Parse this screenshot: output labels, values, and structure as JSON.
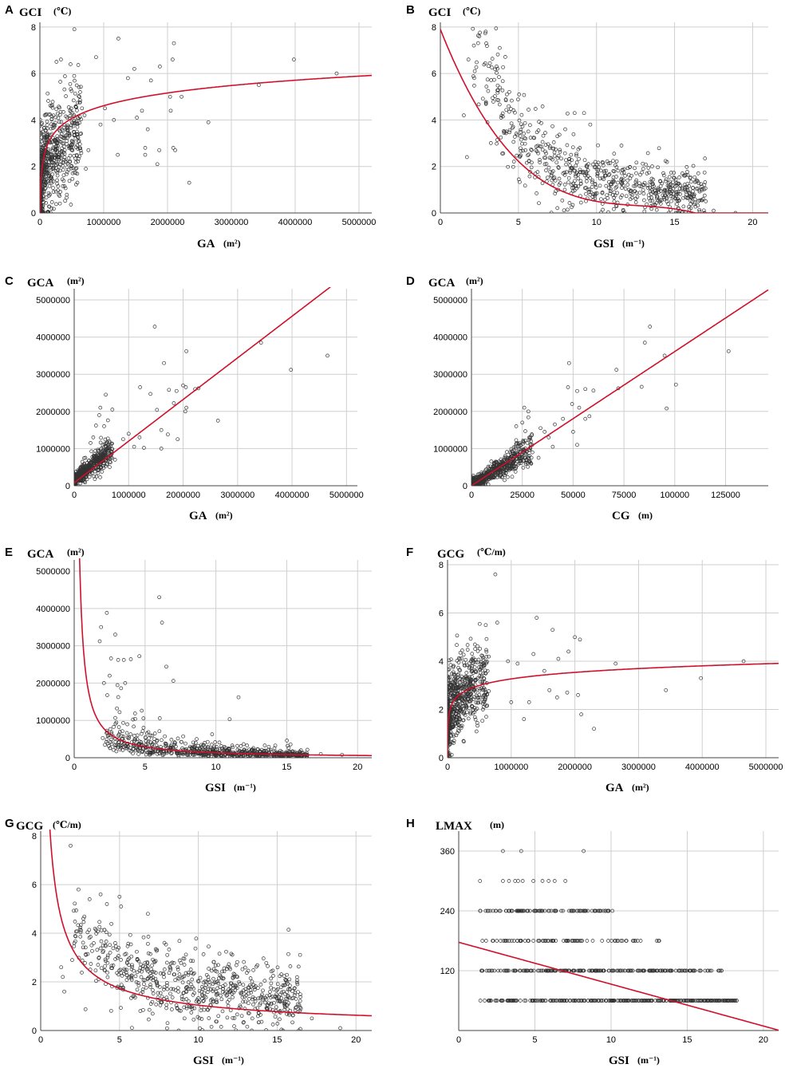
{
  "colors": {
    "fit_line": "#d0102a",
    "points": "#333333",
    "grid": "#cfcfcf"
  },
  "chart_data": [
    {
      "panel": "A",
      "type": "scatter",
      "ylabel": "GCI",
      "yunit": "(℃)",
      "xlabel": "GA",
      "xunit": "(m²)",
      "xlim": [
        0,
        5200000
      ],
      "ylim": [
        0,
        8.2
      ],
      "xticks": [
        0,
        1000000,
        2000000,
        3000000,
        4000000,
        5000000
      ],
      "xtick_labels": [
        "0",
        "1000000",
        "2000000",
        "3000000",
        "4000000",
        "5000000"
      ],
      "yticks": [
        0,
        2,
        4,
        6,
        8
      ],
      "ytick_labels": [
        "0",
        "2",
        "4",
        "6",
        "8"
      ],
      "fit": {
        "kind": "log",
        "a": -6.3,
        "b": 0.79
      },
      "points": [
        [
          1230000,
          7.5
        ],
        [
          2100000,
          7.3
        ],
        [
          2080000,
          6.6
        ],
        [
          3980000,
          6.6
        ],
        [
          880000,
          6.7
        ],
        [
          1480000,
          6.2
        ],
        [
          1880000,
          6.3
        ],
        [
          4650000,
          6.0
        ],
        [
          1380000,
          5.8
        ],
        [
          1740000,
          5.7
        ],
        [
          3430000,
          5.5
        ],
        [
          2040000,
          5.0
        ],
        [
          2220000,
          5.0
        ],
        [
          1020000,
          4.5
        ],
        [
          1600000,
          4.4
        ],
        [
          2050000,
          4.4
        ],
        [
          1160000,
          4.0
        ],
        [
          1520000,
          4.1
        ],
        [
          2640000,
          3.9
        ],
        [
          950000,
          3.8
        ],
        [
          1690000,
          3.6
        ],
        [
          1650000,
          2.8
        ],
        [
          1870000,
          2.7
        ],
        [
          2090000,
          2.8
        ],
        [
          2120000,
          2.7
        ],
        [
          1220000,
          2.5
        ],
        [
          1650000,
          2.5
        ],
        [
          1840000,
          2.1
        ],
        [
          2340000,
          1.3
        ],
        [
          620000,
          5.0
        ],
        [
          660000,
          4.5
        ],
        [
          700000,
          4.2
        ],
        [
          580000,
          3.5
        ],
        [
          760000,
          2.7
        ],
        [
          720000,
          1.9
        ],
        [
          540000,
          7.9
        ],
        [
          480000,
          6.4
        ],
        [
          330000,
          6.6
        ],
        [
          260000,
          6.5
        ]
      ]
    },
    {
      "panel": "B",
      "type": "scatter",
      "ylabel": "GCI",
      "yunit": "(℃)",
      "xlabel": "GSI",
      "xunit": "(m⁻¹)",
      "xlim": [
        0,
        21
      ],
      "ylim": [
        0,
        8.2
      ],
      "xticks": [
        0,
        5,
        10,
        15,
        20
      ],
      "xtick_labels": [
        "0",
        "5",
        "10",
        "15",
        "20"
      ],
      "yticks": [
        0,
        2,
        4,
        6,
        8
      ],
      "ytick_labels": [
        "0",
        "2",
        "4",
        "6",
        "8"
      ],
      "fit": {
        "kind": "cubic",
        "c": [
          7.9,
          -1.7,
          0.13,
          -0.0034
        ]
      },
      "points": [
        [
          2.5,
          7.6
        ],
        [
          2.9,
          7.8
        ],
        [
          3.8,
          7.1
        ],
        [
          1.8,
          6.6
        ],
        [
          2.2,
          6.1
        ],
        [
          3.6,
          6.3
        ],
        [
          1.5,
          4.2
        ],
        [
          1.7,
          2.4
        ],
        [
          18.9,
          0.0
        ],
        [
          17.0,
          0.5
        ],
        [
          16.0,
          0.8
        ],
        [
          15.8,
          1.1
        ],
        [
          16.0,
          1.5
        ],
        [
          15.5,
          1.7
        ],
        [
          17.5,
          0.1
        ],
        [
          8.6,
          4.3
        ],
        [
          9.6,
          3.8
        ],
        [
          11.6,
          2.9
        ],
        [
          13.0,
          1.9
        ],
        [
          9.2,
          4.3
        ]
      ]
    },
    {
      "panel": "C",
      "type": "scatter",
      "ylabel": "GCA",
      "yunit": "(m²)",
      "xlabel": "GA",
      "xunit": "(m²)",
      "xlim": [
        0,
        5200000
      ],
      "ylim": [
        0,
        5300000
      ],
      "xticks": [
        0,
        1000000,
        2000000,
        3000000,
        4000000,
        5000000
      ],
      "xtick_labels": [
        "0",
        "1000000",
        "2000000",
        "3000000",
        "4000000",
        "5000000"
      ],
      "yticks": [
        0,
        1000000,
        2000000,
        3000000,
        4000000,
        5000000
      ],
      "ytick_labels": [
        "0",
        "1000000",
        "2000000",
        "3000000",
        "4000000",
        "5000000"
      ],
      "fit": {
        "kind": "linear",
        "a": 80000,
        "b": 1.12
      },
      "points": [
        [
          1480000,
          4280000
        ],
        [
          3430000,
          3850000
        ],
        [
          2060000,
          3620000
        ],
        [
          4650000,
          3500000
        ],
        [
          1650000,
          3300000
        ],
        [
          3980000,
          3120000
        ],
        [
          1210000,
          2650000
        ],
        [
          2000000,
          2700000
        ],
        [
          2050000,
          2650000
        ],
        [
          2220000,
          2600000
        ],
        [
          2280000,
          2620000
        ],
        [
          1740000,
          2580000
        ],
        [
          1400000,
          2470000
        ],
        [
          1880000,
          2550000
        ],
        [
          2640000,
          1750000
        ],
        [
          1520000,
          2040000
        ],
        [
          1830000,
          2220000
        ],
        [
          2060000,
          2100000
        ],
        [
          2040000,
          2000000
        ],
        [
          1600000,
          1500000
        ],
        [
          1720000,
          1380000
        ],
        [
          1900000,
          1250000
        ],
        [
          1600000,
          1000000
        ],
        [
          1200000,
          1300000
        ],
        [
          1000000,
          1400000
        ],
        [
          900000,
          1250000
        ],
        [
          1100000,
          1050000
        ],
        [
          1280000,
          1020000
        ],
        [
          700000,
          2050000
        ],
        [
          620000,
          1760000
        ],
        [
          580000,
          2450000
        ],
        [
          480000,
          2100000
        ],
        [
          460000,
          1900000
        ],
        [
          400000,
          1620000
        ],
        [
          550000,
          1600000
        ],
        [
          500000,
          1000000
        ],
        [
          350000,
          1300000
        ],
        [
          300000,
          1150000
        ],
        [
          600000,
          800000
        ],
        [
          750000,
          700000
        ]
      ]
    },
    {
      "panel": "D",
      "type": "scatter",
      "ylabel": "GCA",
      "yunit": "(m²)",
      "xlabel": "CG",
      "xunit": "(m)",
      "xlim": [
        0,
        146000
      ],
      "ylim": [
        0,
        5300000
      ],
      "xticks": [
        0,
        25000,
        50000,
        75000,
        100000,
        125000
      ],
      "xtick_labels": [
        "0",
        "25000",
        "50000",
        "75000",
        "100000",
        "125000"
      ],
      "yticks": [
        0,
        1000000,
        2000000,
        3000000,
        4000000,
        5000000
      ],
      "ytick_labels": [
        "0",
        "1000000",
        "2000000",
        "3000000",
        "4000000",
        "5000000"
      ],
      "fit": {
        "kind": "linear",
        "a": 0,
        "b": 36.1
      },
      "points": [
        [
          87800,
          4280000
        ],
        [
          85300,
          3850000
        ],
        [
          126500,
          3620000
        ],
        [
          95000,
          3500000
        ],
        [
          48000,
          3300000
        ],
        [
          71300,
          3120000
        ],
        [
          100600,
          2720000
        ],
        [
          96000,
          2080000
        ],
        [
          83700,
          2660000
        ],
        [
          72200,
          2620000
        ],
        [
          56000,
          2600000
        ],
        [
          60000,
          2560000
        ],
        [
          47500,
          2650000
        ],
        [
          52000,
          2550000
        ],
        [
          49500,
          2200000
        ],
        [
          53000,
          2100000
        ],
        [
          56000,
          1800000
        ],
        [
          58000,
          1870000
        ],
        [
          50000,
          1450000
        ],
        [
          52000,
          1100000
        ],
        [
          45000,
          1800000
        ],
        [
          41000,
          1650000
        ],
        [
          26000,
          2100000
        ],
        [
          28000,
          2000000
        ],
        [
          28000,
          1840000
        ],
        [
          25000,
          1700000
        ],
        [
          22000,
          1600000
        ],
        [
          34000,
          1550000
        ],
        [
          36000,
          1450000
        ],
        [
          38000,
          1300000
        ],
        [
          40000,
          1050000
        ],
        [
          30000,
          900000
        ],
        [
          33000,
          750000
        ]
      ]
    },
    {
      "panel": "E",
      "type": "scatter",
      "ylabel": "GCA",
      "yunit": "(m²)",
      "xlabel": "GSI",
      "xunit": "(m⁻¹)",
      "xlim": [
        0,
        21
      ],
      "ylim": [
        0,
        5300000
      ],
      "xticks": [
        0,
        5,
        10,
        15,
        20
      ],
      "xtick_labels": [
        "0",
        "5",
        "10",
        "15",
        "20"
      ],
      "yticks": [
        0,
        1000000,
        2000000,
        3000000,
        4000000,
        5000000
      ],
      "ytick_labels": [
        "0",
        "1000000",
        "2000000",
        "3000000",
        "4000000",
        "5000000"
      ],
      "fit": {
        "kind": "power",
        "a": 1800000,
        "b": -1.13
      },
      "points": [
        [
          6.0,
          4300000
        ],
        [
          2.3,
          3880000
        ],
        [
          1.9,
          3500000
        ],
        [
          6.2,
          3620000
        ],
        [
          2.9,
          3300000
        ],
        [
          1.8,
          3120000
        ],
        [
          4.6,
          2720000
        ],
        [
          6.5,
          2440000
        ],
        [
          2.6,
          2660000
        ],
        [
          3.1,
          2620000
        ],
        [
          3.5,
          2620000
        ],
        [
          4.0,
          2640000
        ],
        [
          11.6,
          1620000
        ],
        [
          7.0,
          2060000
        ],
        [
          2.1,
          2000000
        ],
        [
          2.5,
          2200000
        ],
        [
          3.6,
          2000000
        ],
        [
          16.0,
          200000
        ],
        [
          18.9,
          80000
        ],
        [
          17.4,
          100000
        ]
      ]
    },
    {
      "panel": "F",
      "type": "scatter",
      "ylabel": "GCG",
      "yunit": "(℃/m)",
      "xlabel": "GA",
      "xunit": "(m²)",
      "xlim": [
        0,
        5200000
      ],
      "ylim": [
        0,
        8.2
      ],
      "xticks": [
        0,
        1000000,
        2000000,
        3000000,
        4000000,
        5000000
      ],
      "xtick_labels": [
        "0",
        "1000000",
        "2000000",
        "3000000",
        "4000000",
        "5000000"
      ],
      "yticks": [
        0,
        2,
        4,
        6,
        8
      ],
      "ytick_labels": [
        "0",
        "2",
        "4",
        "6",
        "8"
      ],
      "fit": {
        "kind": "log",
        "a": -2.12,
        "b": 0.39
      },
      "points": [
        [
          750000,
          7.6
        ],
        [
          1400000,
          5.8
        ],
        [
          600000,
          5.5
        ],
        [
          1650000,
          5.3
        ],
        [
          780000,
          5.6
        ],
        [
          2000000,
          5.0
        ],
        [
          2080000,
          4.9
        ],
        [
          4650000,
          4.0
        ],
        [
          3980000,
          3.3
        ],
        [
          3430000,
          2.8
        ],
        [
          2640000,
          3.9
        ],
        [
          2300000,
          1.2
        ],
        [
          2100000,
          1.8
        ],
        [
          1200000,
          1.6
        ],
        [
          1520000,
          3.6
        ],
        [
          1600000,
          2.8
        ],
        [
          1720000,
          2.5
        ],
        [
          1880000,
          2.7
        ],
        [
          2050000,
          2.6
        ],
        [
          1280000,
          2.3
        ],
        [
          1000000,
          2.3
        ],
        [
          1100000,
          3.9
        ],
        [
          1350000,
          4.3
        ],
        [
          950000,
          4.0
        ],
        [
          1740000,
          4.1
        ],
        [
          1900000,
          4.4
        ]
      ]
    },
    {
      "panel": "G",
      "type": "scatter",
      "ylabel": "GCG",
      "yunit": "(℃/m)",
      "xlabel": "GSI",
      "xunit": "(m⁻¹)",
      "xlim": [
        0,
        21
      ],
      "ylim": [
        0,
        8.2
      ],
      "xticks": [
        0,
        5,
        10,
        15,
        20
      ],
      "xtick_labels": [
        "0",
        "5",
        "10",
        "15",
        "20"
      ],
      "yticks": [
        0,
        2,
        4,
        6,
        8
      ],
      "ytick_labels": [
        "0",
        "2",
        "4",
        "6",
        "8"
      ],
      "fit": {
        "kind": "power",
        "a": 5.6,
        "b": -0.73
      },
      "points": [
        [
          1.9,
          7.6
        ],
        [
          2.4,
          5.8
        ],
        [
          3.1,
          5.4
        ],
        [
          3.8,
          5.6
        ],
        [
          5.0,
          5.5
        ],
        [
          5.1,
          5.1
        ],
        [
          6.8,
          4.8
        ],
        [
          4.2,
          5.2
        ],
        [
          17.2,
          0.5
        ],
        [
          19.0,
          0.1
        ],
        [
          16.5,
          0.9
        ],
        [
          16.2,
          1.3
        ],
        [
          15.5,
          1.5
        ],
        [
          15.8,
          1.7
        ],
        [
          1.5,
          1.6
        ],
        [
          1.4,
          2.2
        ],
        [
          2.0,
          2.9
        ],
        [
          1.3,
          2.6
        ]
      ]
    },
    {
      "panel": "H",
      "type": "scatter",
      "ylabel": "LMAX",
      "yunit": "(m)",
      "xlabel": "GSI",
      "xunit": "(m⁻¹)",
      "xlim": [
        0,
        21
      ],
      "ylim": [
        0,
        400
      ],
      "xticks": [
        0,
        5,
        10,
        15,
        20
      ],
      "xtick_labels": [
        "0",
        "5",
        "10",
        "15",
        "20"
      ],
      "yticks": [
        120,
        240,
        360
      ],
      "ytick_labels": [
        "120",
        "240",
        "360"
      ],
      "fit": {
        "kind": "linear",
        "a": 177,
        "b": -8.4
      },
      "points": [
        [
          2.9,
          360
        ],
        [
          4.1,
          360
        ],
        [
          8.2,
          360
        ],
        [
          1.4,
          300
        ],
        [
          2.9,
          300
        ],
        [
          3.3,
          300
        ],
        [
          3.7,
          300
        ],
        [
          3.9,
          300
        ],
        [
          4.2,
          300
        ],
        [
          4.9,
          300
        ],
        [
          5.5,
          300
        ],
        [
          5.9,
          300
        ],
        [
          6.3,
          300
        ],
        [
          7.0,
          300
        ]
      ]
    }
  ],
  "panels_text": [
    {
      "letter": "A",
      "ylabel": "GCI",
      "yunit": "(℃)",
      "xlabel": "GA",
      "xunit": "(m²)"
    },
    {
      "letter": "B",
      "ylabel": "GCI",
      "yunit": "(℃)",
      "xlabel": "GSI",
      "xunit": "(m⁻¹)"
    },
    {
      "letter": "C",
      "ylabel": "GCA",
      "yunit": "(m²)",
      "xlabel": "GA",
      "xunit": "(m²)"
    },
    {
      "letter": "D",
      "ylabel": "GCA",
      "yunit": "(m²)",
      "xlabel": "CG",
      "xunit": "(m)"
    },
    {
      "letter": "E",
      "ylabel": "GCA",
      "yunit": "(m²)",
      "xlabel": "GSI",
      "xunit": "(m⁻¹)"
    },
    {
      "letter": "F",
      "ylabel": "GCG",
      "yunit": "(℃/m)",
      "xlabel": "GA",
      "xunit": "(m²)"
    },
    {
      "letter": "G",
      "ylabel": "GCG",
      "yunit": "(℃/m)",
      "xlabel": "GSI",
      "xunit": "(m⁻¹)"
    },
    {
      "letter": "H",
      "ylabel": "LMAX",
      "yunit": "(m)",
      "xlabel": "GSI",
      "xunit": "(m⁻¹)"
    }
  ]
}
